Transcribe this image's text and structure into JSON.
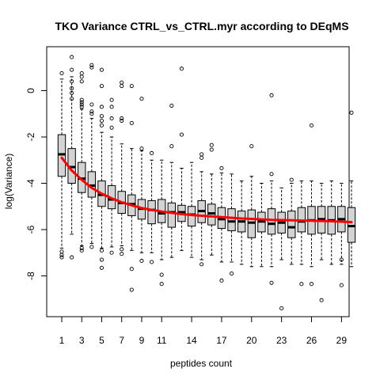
{
  "chart_data": {
    "type": "boxplot",
    "title": "TKO Variance CTRL_vs_CTRL.myr according to DEqMS",
    "xlabel": "peptides count",
    "ylabel": "log(Variance)",
    "categories": [
      1,
      2,
      3,
      4,
      5,
      6,
      7,
      8,
      9,
      10,
      11,
      12,
      13,
      14,
      15,
      16,
      17,
      18,
      19,
      20,
      21,
      22,
      23,
      24,
      25,
      26,
      27,
      28,
      29,
      30
    ],
    "x_tick_labels": [
      "1",
      "3",
      "5",
      "7",
      "9",
      "11",
      "14",
      "17",
      "20",
      "23",
      "26",
      "29"
    ],
    "y_ticks": [
      0,
      -2,
      -4,
      -6,
      -8
    ],
    "y_tick_labels": [
      "0",
      "-2",
      "-4",
      "-6",
      "-8"
    ],
    "ylim": [
      -9.6,
      1.7
    ],
    "box_fill": "#d3d3d3",
    "trend_color": "#ff0000",
    "boxes": [
      {
        "q1": -3.7,
        "median": -2.75,
        "q3": -1.9,
        "wlo": -6.8,
        "whi": 0.5,
        "outliers": [
          0.75,
          -6.95,
          -7.1,
          -7.2
        ]
      },
      {
        "q1": -4.0,
        "median": -3.3,
        "q3": -2.5,
        "wlo": -6.2,
        "whi": 0.6,
        "outliers": [
          1.45,
          0.9,
          0.4,
          0.1,
          -0.1,
          -0.35,
          -7.2
        ]
      },
      {
        "q1": -4.4,
        "median": -3.8,
        "q3": -3.1,
        "wlo": -6.7,
        "whi": -0.8,
        "outliers": [
          0.75,
          0.6,
          0.4,
          -0.4,
          -0.5,
          -0.6,
          -0.7,
          -6.8,
          -6.9
        ]
      },
      {
        "q1": -4.6,
        "median": -4.1,
        "q3": -3.5,
        "wlo": -6.6,
        "whi": -1.2,
        "outliers": [
          1.1,
          1.0,
          -0.6,
          -0.9,
          -1.0,
          -6.75
        ]
      },
      {
        "q1": -5.0,
        "median": -4.5,
        "q3": -3.9,
        "wlo": -6.8,
        "whi": -1.8,
        "outliers": [
          0.9,
          0.2,
          -0.7,
          -1.1,
          -1.3,
          -1.5,
          -6.9,
          -7.3,
          -7.65
        ]
      },
      {
        "q1": -5.1,
        "median": -4.7,
        "q3": -4.1,
        "wlo": -6.75,
        "whi": -2.0,
        "outliers": [
          -0.4,
          -0.7,
          -1.2,
          -1.6,
          -7.0
        ]
      },
      {
        "q1": -5.3,
        "median": -4.85,
        "q3": -4.35,
        "wlo": -6.7,
        "whi": -2.3,
        "outliers": [
          0.35,
          0.2,
          -1.2,
          -1.3,
          -6.85,
          -7.05
        ]
      },
      {
        "q1": -5.4,
        "median": -4.9,
        "q3": -4.5,
        "wlo": -6.9,
        "whi": -2.5,
        "outliers": [
          0.2,
          -1.4,
          -7.7,
          -8.6
        ]
      },
      {
        "q1": -5.55,
        "median": -5.1,
        "q3": -4.7,
        "wlo": -7.0,
        "whi": -2.6,
        "outliers": [
          -0.35,
          -2.5,
          -7.35
        ]
      },
      {
        "q1": -5.75,
        "median": -5.15,
        "q3": -4.75,
        "wlo": -7.0,
        "whi": -3.0,
        "outliers": [
          -2.7,
          -7.4
        ]
      },
      {
        "q1": -5.7,
        "median": -5.3,
        "q3": -4.7,
        "wlo": -7.3,
        "whi": -3.0,
        "outliers": [
          -7.95,
          -8.35
        ]
      },
      {
        "q1": -5.9,
        "median": -5.25,
        "q3": -4.85,
        "wlo": -7.2,
        "whi": -3.1,
        "outliers": [
          -0.65,
          -2.4
        ]
      },
      {
        "q1": -5.65,
        "median": -5.25,
        "q3": -4.95,
        "wlo": -6.9,
        "whi": -3.35,
        "outliers": [
          0.95,
          -1.9
        ]
      },
      {
        "q1": -5.85,
        "median": -5.35,
        "q3": -5.0,
        "wlo": -7.2,
        "whi": -3.1,
        "outliers": []
      },
      {
        "q1": -5.7,
        "median": -5.2,
        "q3": -4.75,
        "wlo": -7.3,
        "whi": -3.5,
        "outliers": [
          -2.75,
          -2.9,
          -7.5
        ]
      },
      {
        "q1": -5.8,
        "median": -5.3,
        "q3": -4.9,
        "wlo": -7.1,
        "whi": -3.6,
        "outliers": [
          -2.35,
          -2.55
        ]
      },
      {
        "q1": -5.95,
        "median": -5.55,
        "q3": -5.05,
        "wlo": -7.4,
        "whi": -3.55,
        "outliers": [
          -3.35,
          -8.2
        ]
      },
      {
        "q1": -6.05,
        "median": -5.65,
        "q3": -5.1,
        "wlo": -7.4,
        "whi": -3.6,
        "outliers": [
          -7.9
        ]
      },
      {
        "q1": -6.1,
        "median": -5.65,
        "q3": -5.2,
        "wlo": -7.5,
        "whi": -3.9,
        "outliers": []
      },
      {
        "q1": -6.35,
        "median": -5.7,
        "q3": -5.15,
        "wlo": -7.6,
        "whi": -3.7,
        "outliers": [
          -2.4
        ]
      },
      {
        "q1": -6.1,
        "median": -5.65,
        "q3": -5.25,
        "wlo": -7.6,
        "whi": -4.0,
        "outliers": []
      },
      {
        "q1": -6.2,
        "median": -5.75,
        "q3": -5.1,
        "wlo": -7.6,
        "whi": -3.9,
        "outliers": [
          -0.2,
          -3.6,
          -8.3
        ]
      },
      {
        "q1": -6.15,
        "median": -5.7,
        "q3": -5.25,
        "wlo": -7.3,
        "whi": -4.2,
        "outliers": [
          -9.4
        ]
      },
      {
        "q1": -6.35,
        "median": -5.9,
        "q3": -5.2,
        "wlo": -7.5,
        "whi": -4.0,
        "outliers": [
          -3.85
        ]
      },
      {
        "q1": -6.1,
        "median": -5.65,
        "q3": -5.05,
        "wlo": -7.5,
        "whi": -3.9,
        "outliers": [
          -8.35
        ]
      },
      {
        "q1": -6.2,
        "median": -5.6,
        "q3": -5.0,
        "wlo": -7.6,
        "whi": -3.9,
        "outliers": [
          -1.5,
          -8.35
        ]
      },
      {
        "q1": -6.15,
        "median": -5.55,
        "q3": -5.0,
        "wlo": -7.3,
        "whi": -4.0,
        "outliers": [
          -9.05
        ]
      },
      {
        "q1": -6.2,
        "median": -5.6,
        "q3": -5.0,
        "wlo": -7.5,
        "whi": -3.9,
        "outliers": []
      },
      {
        "q1": -6.1,
        "median": -5.55,
        "q3": -5.0,
        "wlo": -7.5,
        "whi": -4.0,
        "outliers": [
          -7.3,
          -8.4
        ]
      },
      {
        "q1": -6.55,
        "median": -5.85,
        "q3": -5.05,
        "wlo": -7.6,
        "whi": -3.9,
        "outliers": [
          -0.95
        ]
      }
    ],
    "trend": [
      {
        "x": 1,
        "y": -2.9
      },
      {
        "x": 2,
        "y": -3.45
      },
      {
        "x": 3,
        "y": -3.85
      },
      {
        "x": 4,
        "y": -4.2
      },
      {
        "x": 5,
        "y": -4.45
      },
      {
        "x": 6,
        "y": -4.65
      },
      {
        "x": 7,
        "y": -4.82
      },
      {
        "x": 8,
        "y": -4.95
      },
      {
        "x": 9,
        "y": -5.07
      },
      {
        "x": 10,
        "y": -5.15
      },
      {
        "x": 11,
        "y": -5.22
      },
      {
        "x": 12,
        "y": -5.28
      },
      {
        "x": 13,
        "y": -5.33
      },
      {
        "x": 14,
        "y": -5.37
      },
      {
        "x": 15,
        "y": -5.4
      },
      {
        "x": 16,
        "y": -5.43
      },
      {
        "x": 17,
        "y": -5.46
      },
      {
        "x": 18,
        "y": -5.49
      },
      {
        "x": 19,
        "y": -5.52
      },
      {
        "x": 20,
        "y": -5.54
      },
      {
        "x": 21,
        "y": -5.56
      },
      {
        "x": 22,
        "y": -5.58
      },
      {
        "x": 23,
        "y": -5.59
      },
      {
        "x": 24,
        "y": -5.6
      },
      {
        "x": 25,
        "y": -5.61
      },
      {
        "x": 26,
        "y": -5.62
      },
      {
        "x": 27,
        "y": -5.63
      },
      {
        "x": 28,
        "y": -5.64
      },
      {
        "x": 29,
        "y": -5.66
      },
      {
        "x": 30,
        "y": -5.68
      }
    ]
  }
}
